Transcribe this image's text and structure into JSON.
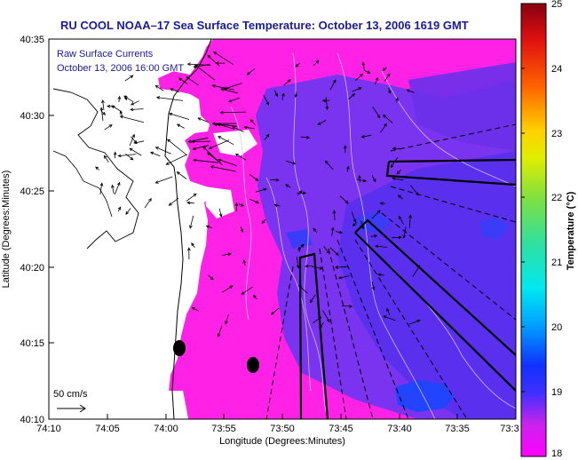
{
  "title": "RU COOL  NOAA–17  Sea Surface Temperature:  October 13, 2006 1619 GMT",
  "overlay": {
    "line1": "Raw Surface Currents",
    "line2": "October 13, 2006 16:00 GMT"
  },
  "axes": {
    "xlabel": "Longitude (Degrees:Minutes)",
    "ylabel": "Latitude (Degrees:Minutes)",
    "xticks": [
      "74:10",
      "74:05",
      "74:00",
      "73:55",
      "73:50",
      "73:45",
      "73:40",
      "73:35",
      "73:3"
    ],
    "yticks": [
      "40:35",
      "40:30",
      "40:25",
      "40:20",
      "40:15",
      "40:10"
    ]
  },
  "colorbar": {
    "label": "Temperature (°C)",
    "ticks": [
      "25",
      "24",
      "23",
      "22",
      "21",
      "20",
      "19",
      "18"
    ],
    "min": 18,
    "max": 25
  },
  "scale_arrow": {
    "label": "50 cm/s"
  },
  "colors": {
    "land": "#ffffff",
    "warm_water": "#ff22e6",
    "cool_water": "#6633ee",
    "coldest": "#2244ff",
    "title": "#1a1a9a"
  }
}
